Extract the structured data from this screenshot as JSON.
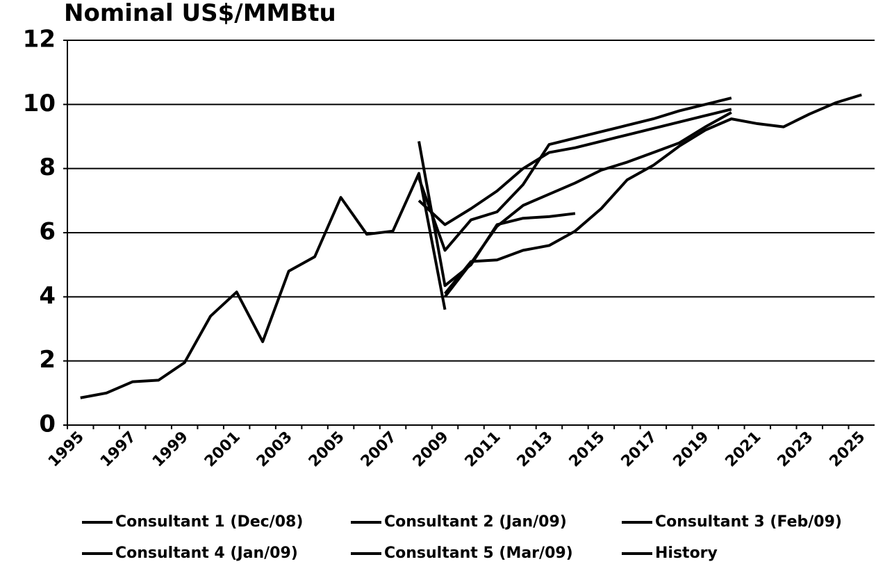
{
  "chart_data": {
    "type": "line",
    "title": "Nominal US$/MMBtu",
    "categories": [
      "1995",
      null,
      "1997",
      null,
      "1999",
      null,
      "2001",
      null,
      "2003",
      null,
      "2005",
      null,
      "2007",
      null,
      "2009",
      null,
      "2011",
      null,
      "2013",
      null,
      "2015",
      null,
      "2017",
      null,
      "2019",
      null,
      "2021",
      null,
      "2023",
      null,
      "2025"
    ],
    "ylim": [
      0,
      12
    ],
    "yticks": [
      0,
      2,
      4,
      6,
      8,
      10,
      12
    ],
    "grid": true,
    "series": [
      {
        "name": "Consultant 1 (Dec/08)",
        "color": "#000000",
        "values": [
          null,
          null,
          null,
          null,
          null,
          null,
          null,
          null,
          null,
          null,
          null,
          null,
          null,
          7.0,
          6.25,
          6.75,
          7.3,
          8.0,
          8.5,
          8.65,
          8.85,
          9.05,
          9.25,
          9.45,
          9.65,
          9.85,
          null,
          null,
          null,
          null,
          null
        ]
      },
      {
        "name": "Consultant 2 (Jan/09)",
        "color": "#000000",
        "values": [
          null,
          null,
          null,
          null,
          null,
          null,
          null,
          null,
          null,
          null,
          null,
          null,
          null,
          7.7,
          5.45,
          6.4,
          6.65,
          7.5,
          8.75,
          8.95,
          9.15,
          9.35,
          9.55,
          9.8,
          10.0,
          10.2,
          null,
          null,
          null,
          null,
          null
        ]
      },
      {
        "name": "Consultant 3 (Feb/09)",
        "color": "#000000",
        "values": [
          null,
          null,
          null,
          null,
          null,
          null,
          null,
          null,
          null,
          null,
          null,
          null,
          null,
          8.85,
          4.35,
          5.0,
          6.25,
          6.45,
          6.5,
          6.6,
          null,
          null,
          null,
          null,
          null,
          null,
          null,
          null,
          null,
          null,
          null
        ]
      },
      {
        "name": "Consultant 4 (Jan/09)",
        "color": "#000000",
        "values": [
          null,
          null,
          null,
          null,
          null,
          null,
          null,
          null,
          null,
          null,
          null,
          null,
          null,
          null,
          4.0,
          5.05,
          6.2,
          6.85,
          7.2,
          7.55,
          7.95,
          8.2,
          8.5,
          8.8,
          9.3,
          9.75,
          null,
          null,
          null,
          null,
          null
        ]
      },
      {
        "name": "Consultant 5 (Mar/09)",
        "color": "#000000",
        "values": [
          null,
          null,
          null,
          null,
          null,
          null,
          null,
          null,
          null,
          null,
          null,
          null,
          null,
          null,
          4.1,
          5.1,
          5.15,
          5.45,
          5.6,
          6.05,
          6.75,
          7.65,
          8.1,
          8.7,
          9.2,
          9.55,
          9.4,
          9.3,
          9.7,
          10.05,
          10.3
        ]
      },
      {
        "name": "History",
        "color": "#000000",
        "values": [
          0.85,
          1.0,
          1.35,
          1.4,
          1.95,
          3.4,
          4.15,
          2.6,
          4.8,
          5.25,
          7.1,
          5.95,
          6.05,
          7.85,
          3.6,
          null,
          null,
          null,
          null,
          null,
          null,
          null,
          null,
          null,
          null,
          null,
          null,
          null,
          null,
          null,
          null
        ]
      }
    ]
  }
}
